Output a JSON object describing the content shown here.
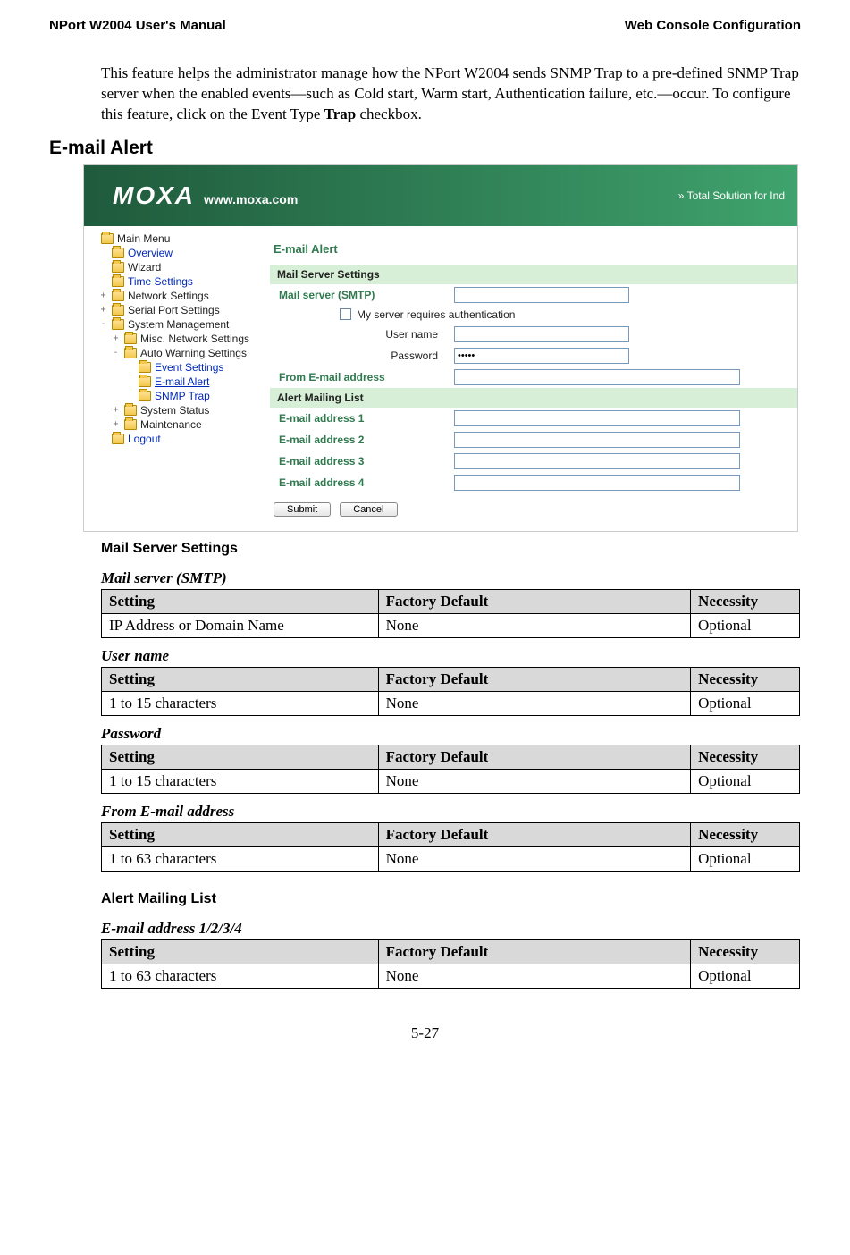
{
  "header": {
    "left": "NPort W2004 User's Manual",
    "right": "Web Console Configuration"
  },
  "intro_html": "This feature helps the administrator manage how the NPort W2004 sends SNMP Trap to a pre-defined SNMP Trap server when the enabled events—such as Cold start, Warm start, Authentication failure, etc.—occur. To configure this feature, click on the Event Type <b>Trap</b> checkbox.",
  "h2": "E-mail Alert",
  "screenshot": {
    "banner": {
      "bg_from": "#1f5a3c",
      "bg_to": "#3fa36d",
      "logo_main": "MOXA",
      "logo_sub": "www.moxa.com",
      "tagline": "»  Total Solution for Ind"
    },
    "green_title": "#2f7a4f",
    "green_bg": "#d7eed7",
    "sidebar": [
      {
        "indent": 0,
        "toggle": "",
        "label": "Main Menu",
        "link": false
      },
      {
        "indent": 1,
        "toggle": "",
        "label": "Overview",
        "link": true
      },
      {
        "indent": 1,
        "toggle": "",
        "label": "Wizard",
        "link": false
      },
      {
        "indent": 1,
        "toggle": "",
        "label": "Time Settings",
        "link": true
      },
      {
        "indent": 1,
        "toggle": "+",
        "label": "Network Settings",
        "link": false
      },
      {
        "indent": 1,
        "toggle": "+",
        "label": "Serial Port Settings",
        "link": false
      },
      {
        "indent": 1,
        "toggle": "-",
        "label": "System Management",
        "link": false
      },
      {
        "indent": 2,
        "toggle": "+",
        "label": "Misc. Network Settings",
        "link": false
      },
      {
        "indent": 2,
        "toggle": "-",
        "label": "Auto Warning Settings",
        "link": false
      },
      {
        "indent": 3,
        "toggle": "",
        "label": "Event Settings",
        "link": true
      },
      {
        "indent": 3,
        "toggle": "",
        "label": "E-mail Alert",
        "link": true,
        "underline": true
      },
      {
        "indent": 3,
        "toggle": "",
        "label": "SNMP Trap",
        "link": true
      },
      {
        "indent": 2,
        "toggle": "+",
        "label": "System Status",
        "link": false
      },
      {
        "indent": 2,
        "toggle": "+",
        "label": "Maintenance",
        "link": false
      },
      {
        "indent": 1,
        "toggle": "",
        "label": "Logout",
        "link": true
      }
    ],
    "main": {
      "title": "E-mail Alert",
      "sec1_head": "Mail Server Settings",
      "smtp_label": "Mail server (SMTP)",
      "auth_label": "My server requires authentication",
      "user_label": "User name",
      "pass_label": "Password",
      "pass_value": "•••••",
      "from_label": "From E-mail address",
      "sec2_head": "Alert Mailing List",
      "addr_labels": [
        "E-mail address 1",
        "E-mail address 2",
        "E-mail address 3",
        "E-mail address 4"
      ],
      "submit": "Submit",
      "cancel": "Cancel"
    }
  },
  "h3_mail": "Mail Server Settings",
  "tables": {
    "header_bg": "#d9d9d9",
    "cols": {
      "setting": "Setting",
      "default": "Factory Default",
      "necessity": "Necessity"
    },
    "smtp": {
      "title": "Mail server (SMTP)",
      "setting": "IP Address or Domain Name",
      "default": "None",
      "necessity": "Optional"
    },
    "user": {
      "title": "User name",
      "setting": "1 to 15 characters",
      "default": "None",
      "necessity": "Optional"
    },
    "pass": {
      "title": "Password",
      "setting": "1 to 15 characters",
      "default": "None",
      "necessity": "Optional"
    },
    "from": {
      "title": "From E-mail address",
      "setting": "1 to 63 characters",
      "default": "None",
      "necessity": "Optional"
    },
    "addr": {
      "title": "E-mail address 1/2/3/4",
      "setting": "1 to 63 characters",
      "default": "None",
      "necessity": "Optional"
    }
  },
  "h3_alert": "Alert Mailing List",
  "page_number": "5-27"
}
